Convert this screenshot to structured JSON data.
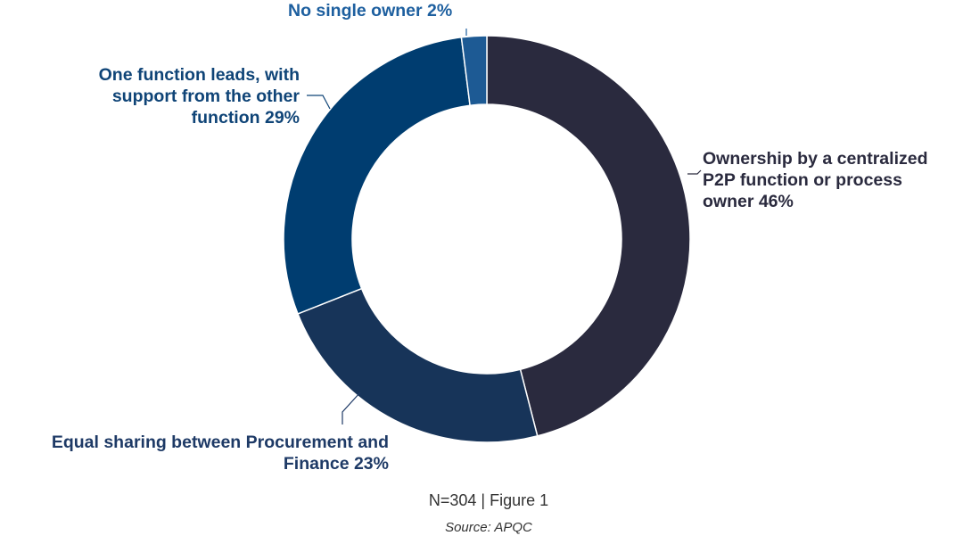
{
  "chart_data": {
    "type": "pie",
    "variant": "donut",
    "slices": [
      {
        "label": "Ownership by a centralized P2P function or process owner 46%",
        "line1": "Ownership by a centralized",
        "line2": "P2P function or process",
        "line3": "owner 46%",
        "value": 46,
        "color": "#2a2a3e",
        "label_color": "#2a2a3e"
      },
      {
        "label": "Equal sharing between Procurement and Finance 23%",
        "line1": "Equal sharing between Procurement and",
        "line2": "Finance 23%",
        "value": 23,
        "color": "#173459",
        "label_color": "#1e3a66"
      },
      {
        "label": "One function leads, with support from the other function 29%",
        "line1": "One function leads, with",
        "line2": "support from the other",
        "line3": "function 29%",
        "value": 29,
        "color": "#003d70",
        "label_color": "#0f4477"
      },
      {
        "label": "No single owner 2%",
        "line1": "No single owner 2%",
        "value": 2,
        "color": "#1d5a94",
        "label_color": "#1d5f9f"
      }
    ],
    "start": "top",
    "direction": "clockwise"
  },
  "footer": {
    "caption": "N=304 | Figure 1",
    "source": "Source: APQC"
  }
}
